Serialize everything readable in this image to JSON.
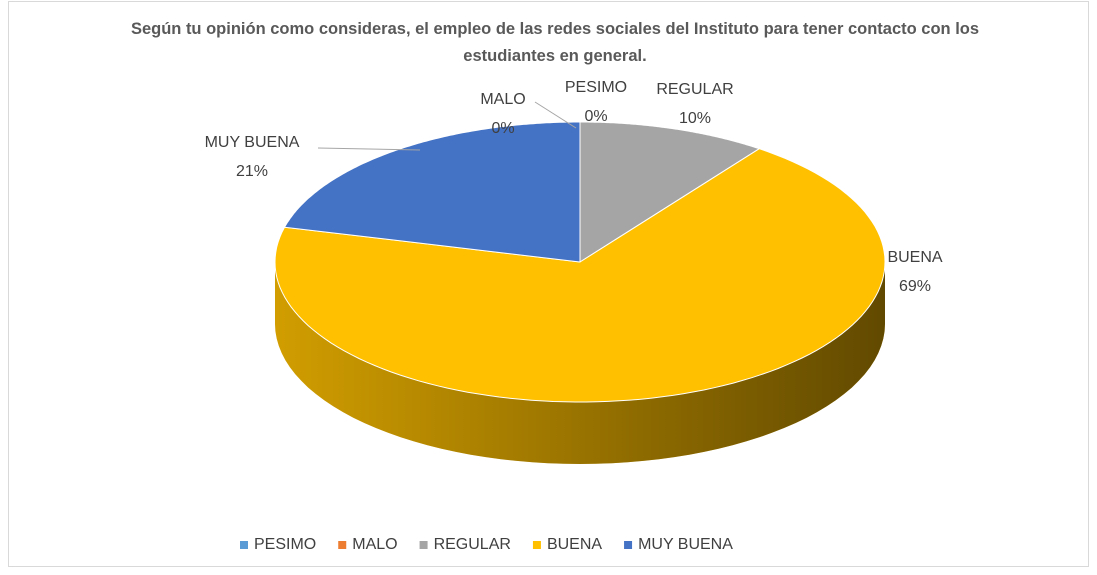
{
  "chart_data": {
    "type": "pie",
    "title": "Según tu opinión como consideras, el empleo de las redes sociales del Instituto para tener contacto con los estudiantes en general.",
    "categories": [
      "PESIMO",
      "MALO",
      "REGULAR",
      "BUENA",
      "MUY BUENA"
    ],
    "values": [
      0,
      0,
      10,
      69,
      21
    ],
    "value_labels": [
      "0%",
      "0%",
      "10%",
      "69%",
      "21%"
    ],
    "colors": [
      "#5b9bd5",
      "#ed7d31",
      "#a5a5a5",
      "#ffc000",
      "#4472c4"
    ],
    "legend": "bottom"
  }
}
